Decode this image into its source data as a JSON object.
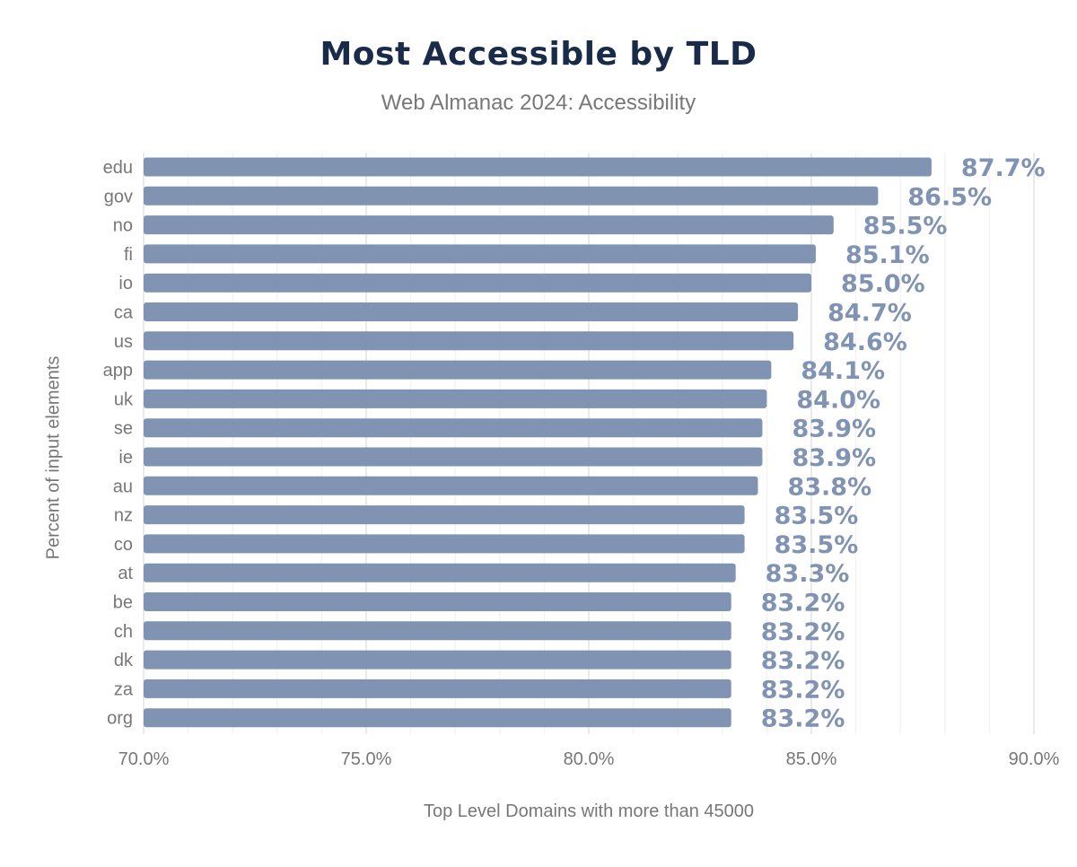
{
  "chart_data": {
    "type": "bar",
    "orientation": "horizontal",
    "title": "Most Accessible by TLD",
    "subtitle": "Web Almanac 2024: Accessibility",
    "xlabel": "Top Level Domains with more than 45000",
    "ylabel": "Percent of input elements",
    "categories": [
      "edu",
      "gov",
      "no",
      "fi",
      "io",
      "ca",
      "us",
      "app",
      "uk",
      "se",
      "ie",
      "au",
      "nz",
      "co",
      "at",
      "be",
      "ch",
      "dk",
      "za",
      "org"
    ],
    "values": [
      87.7,
      86.5,
      85.5,
      85.1,
      85.0,
      84.7,
      84.6,
      84.1,
      84.0,
      83.9,
      83.9,
      83.8,
      83.5,
      83.5,
      83.3,
      83.2,
      83.2,
      83.2,
      83.2,
      83.2
    ],
    "data_labels": [
      "87.7%",
      "86.5%",
      "85.5%",
      "85.1%",
      "85.0%",
      "84.7%",
      "84.6%",
      "84.1%",
      "84.0%",
      "83.9%",
      "83.9%",
      "83.8%",
      "83.5%",
      "83.5%",
      "83.3%",
      "83.2%",
      "83.2%",
      "83.2%",
      "83.2%",
      "83.2%"
    ],
    "xlim": [
      70,
      90
    ],
    "x_ticks": [
      70,
      75,
      80,
      85,
      90
    ],
    "x_tick_labels": [
      "70.0%",
      "75.0%",
      "80.0%",
      "85.0%",
      "90.0%"
    ],
    "grid": true,
    "bar_color": "#8093b3",
    "title_color": "#1a2b49"
  }
}
